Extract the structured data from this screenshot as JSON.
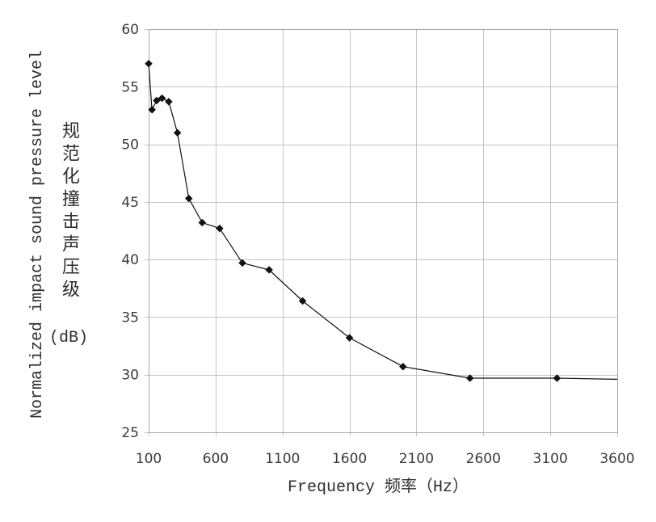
{
  "chart_data": {
    "type": "line",
    "xlabel": "Frequency 频率（Hz）",
    "ylabel": "Normalized impact sound pressure level",
    "ylabel_zh": "规范化撞击声压级",
    "ylabel_unit": "(dB)",
    "xlim": [
      100,
      3600
    ],
    "ylim": [
      25,
      60
    ],
    "x_ticks": [
      100,
      600,
      1100,
      1600,
      2100,
      2600,
      3100,
      3600
    ],
    "y_ticks": [
      25,
      30,
      35,
      40,
      45,
      50,
      55,
      60
    ],
    "grid": true,
    "grid_color": "#c4c4c4",
    "frame_color": "#a8a8a8",
    "series": [
      {
        "marker": "diamond",
        "color": "#111111",
        "x": [
          100,
          125,
          160,
          200,
          250,
          315,
          400,
          500,
          630,
          800,
          1000,
          1250,
          1600,
          2000,
          2500,
          3150
        ],
        "y": [
          57.0,
          53.0,
          53.8,
          54.0,
          53.7,
          51.0,
          45.3,
          43.2,
          42.7,
          39.7,
          39.1,
          36.4,
          33.2,
          30.7,
          29.7,
          29.7
        ],
        "line_end": {
          "x": 3600,
          "y": 29.6
        }
      }
    ]
  }
}
